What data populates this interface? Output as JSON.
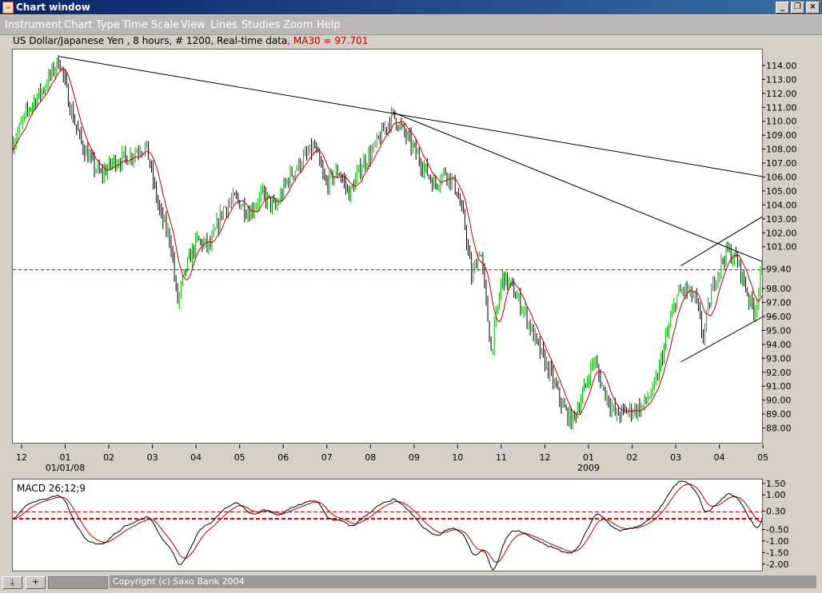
{
  "window": {
    "title": "Chart window",
    "buttons": [
      "_",
      "❐",
      "×"
    ]
  },
  "menu": [
    "Instrument",
    "Chart Type",
    "Time Scale",
    "View",
    "Lines",
    "Studies",
    "Zoom",
    "Help"
  ],
  "info": {
    "prefix": "US Dollar/Japanese Yen , 8 hours, # 1200, Real-time data",
    "ma_label": ", MA30 = 97.701"
  },
  "status": {
    "copyright": "Copyright (c) Saxo Bank 2004",
    "btn1": "⍊",
    "btn2": "+"
  },
  "colors": {
    "bars_up": "#00b000",
    "bars_down": "#000000",
    "ma": "#c00000",
    "trendlines": "#000000",
    "ref_line": "#c00000"
  },
  "chart_data": [
    {
      "type": "candlestick",
      "instrument": "US Dollar/Japanese Yen",
      "ma_series_name": "MA30",
      "ma_last": 97.701,
      "ylim": [
        87.0,
        115.2
      ],
      "y_ticks": [
        "114.00",
        "113.00",
        "112.00",
        "111.00",
        "110.00",
        "109.00",
        "108.00",
        "107.00",
        "106.00",
        "105.00",
        "104.00",
        "103.00",
        "102.00",
        "101.00",
        "99.40",
        "98.00",
        "97.00",
        "96.00",
        "95.00",
        "94.00",
        "93.00",
        "92.00",
        "91.00",
        "90.00",
        "89.00",
        "88.00"
      ],
      "reference_line": 99.4,
      "x_ticks": [
        "12",
        "01",
        "02",
        "03",
        "04",
        "05",
        "06",
        "07",
        "08",
        "09",
        "10",
        "11",
        "12",
        "01",
        "02",
        "03",
        "04",
        "05"
      ],
      "x_sublabels": [
        {
          "under": 1,
          "text": "01/01/08"
        },
        {
          "under": 13,
          "text": "2009"
        }
      ],
      "x_range": [
        -0.22,
        16.96
      ],
      "anchors": [
        {
          "t": -0.22,
          "v": 108.5
        },
        {
          "t": 0.15,
          "v": 111.0
        },
        {
          "t": 0.5,
          "v": 112.5
        },
        {
          "t": 0.85,
          "v": 114.5
        },
        {
          "t": 1.1,
          "v": 111.0
        },
        {
          "t": 1.35,
          "v": 108.5
        },
        {
          "t": 1.6,
          "v": 107.0
        },
        {
          "t": 1.8,
          "v": 106.2
        },
        {
          "t": 2.1,
          "v": 107.2
        },
        {
          "t": 2.45,
          "v": 107.5
        },
        {
          "t": 2.7,
          "v": 108.2
        },
        {
          "t": 2.85,
          "v": 108.1
        },
        {
          "t": 2.95,
          "v": 106.5
        },
        {
          "t": 3.15,
          "v": 103.5
        },
        {
          "t": 3.4,
          "v": 101.5
        },
        {
          "t": 3.55,
          "v": 97.0
        },
        {
          "t": 3.75,
          "v": 99.5
        },
        {
          "t": 4.0,
          "v": 101.5
        },
        {
          "t": 4.3,
          "v": 101.0
        },
        {
          "t": 4.6,
          "v": 103.8
        },
        {
          "t": 4.9,
          "v": 104.5
        },
        {
          "t": 5.2,
          "v": 103.5
        },
        {
          "t": 5.5,
          "v": 104.8
        },
        {
          "t": 5.8,
          "v": 103.8
        },
        {
          "t": 6.1,
          "v": 106.0
        },
        {
          "t": 6.4,
          "v": 107.2
        },
        {
          "t": 6.7,
          "v": 108.2
        },
        {
          "t": 6.95,
          "v": 105.5
        },
        {
          "t": 7.25,
          "v": 106.5
        },
        {
          "t": 7.5,
          "v": 104.8
        },
        {
          "t": 7.8,
          "v": 107.0
        },
        {
          "t": 8.05,
          "v": 108.0
        },
        {
          "t": 8.3,
          "v": 109.5
        },
        {
          "t": 8.5,
          "v": 110.5
        },
        {
          "t": 8.7,
          "v": 109.5
        },
        {
          "t": 8.95,
          "v": 108.2
        },
        {
          "t": 9.2,
          "v": 106.8
        },
        {
          "t": 9.45,
          "v": 105.5
        },
        {
          "t": 9.7,
          "v": 106.5
        },
        {
          "t": 9.95,
          "v": 105.2
        },
        {
          "t": 10.15,
          "v": 102.5
        },
        {
          "t": 10.3,
          "v": 98.8
        },
        {
          "t": 10.5,
          "v": 101.0
        },
        {
          "t": 10.75,
          "v": 93.5
        },
        {
          "t": 11.0,
          "v": 99.0
        },
        {
          "t": 11.2,
          "v": 98.2
        },
        {
          "t": 11.5,
          "v": 96.5
        },
        {
          "t": 11.8,
          "v": 94.0
        },
        {
          "t": 12.1,
          "v": 92.0
        },
        {
          "t": 12.4,
          "v": 89.5
        },
        {
          "t": 12.6,
          "v": 88.5
        },
        {
          "t": 12.85,
          "v": 90.5
        },
        {
          "t": 13.1,
          "v": 93.0
        },
        {
          "t": 13.3,
          "v": 91.0
        },
        {
          "t": 13.6,
          "v": 89.0
        },
        {
          "t": 13.9,
          "v": 89.3
        },
        {
          "t": 14.2,
          "v": 89.5
        },
        {
          "t": 14.5,
          "v": 91.0
        },
        {
          "t": 14.8,
          "v": 95.0
        },
        {
          "t": 15.0,
          "v": 97.5
        },
        {
          "t": 15.2,
          "v": 98.0
        },
        {
          "t": 15.45,
          "v": 97.2
        },
        {
          "t": 15.6,
          "v": 94.5
        },
        {
          "t": 15.85,
          "v": 98.5
        },
        {
          "t": 16.15,
          "v": 100.8
        },
        {
          "t": 16.4,
          "v": 100.0
        },
        {
          "t": 16.7,
          "v": 97.0
        },
        {
          "t": 16.8,
          "v": 96.5
        },
        {
          "t": 16.96,
          "v": 99.4
        }
      ],
      "trendlines": [
        [
          {
            "t": 0.85,
            "v": 114.7
          },
          {
            "t": 16.96,
            "v": 106.1
          }
        ],
        [
          {
            "t": 8.5,
            "v": 110.7
          },
          {
            "t": 16.96,
            "v": 100.0
          }
        ],
        [
          {
            "t": 15.1,
            "v": 99.7
          },
          {
            "t": 16.96,
            "v": 103.2
          }
        ],
        [
          {
            "t": 15.1,
            "v": 92.8
          },
          {
            "t": 16.96,
            "v": 96.0
          }
        ]
      ]
    },
    {
      "type": "line",
      "title": "MACD 26;12;9",
      "series": [
        {
          "values_from_price": true
        },
        {
          "signal": true
        }
      ],
      "ylim": [
        -2.25,
        1.7
      ],
      "y_ticks": [
        "1.50",
        "1.00",
        "0.30",
        "-0.50",
        "-1.00",
        "-1.50",
        "-2.00"
      ],
      "reference_lines": [
        0.3,
        0.0
      ]
    }
  ]
}
